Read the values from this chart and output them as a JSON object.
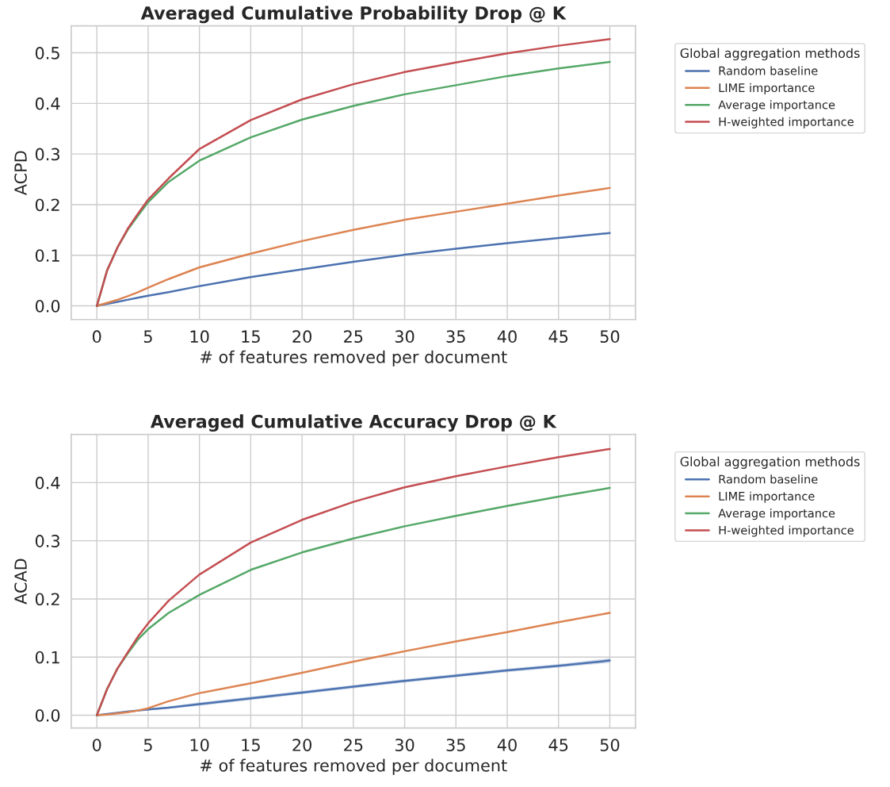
{
  "chart_data": [
    {
      "type": "line",
      "title": "Averaged Cumulative Probability Drop @ K",
      "xlabel": "# of features removed per document",
      "ylabel": "ACPD",
      "legend_title": "Global aggregation methods",
      "legend": "top right",
      "grid": true,
      "x": [
        0,
        1,
        2,
        3,
        4,
        5,
        7,
        10,
        15,
        20,
        25,
        30,
        35,
        40,
        45,
        50
      ],
      "xlim": [
        -2.5,
        52.5
      ],
      "xticks": [
        0,
        5,
        10,
        15,
        20,
        25,
        30,
        35,
        40,
        45,
        50
      ],
      "ylim": [
        -0.027,
        0.553
      ],
      "yticks": [
        {
          "value": 0,
          "label": "0.0"
        },
        0.1,
        0.2,
        0.3,
        0.4,
        0.5
      ],
      "series": [
        {
          "name": "Random baseline",
          "color": "#4c72b0",
          "values": [
            0,
            0.004,
            0.008,
            0.012,
            0.016,
            0.02,
            0.027,
            0.039,
            0.057,
            0.072,
            0.087,
            0.101,
            0.113,
            0.124,
            0.134,
            0.144
          ]
        },
        {
          "name": "LIME importance",
          "color": "#dd8452",
          "values": [
            0,
            0.006,
            0.012,
            0.019,
            0.027,
            0.036,
            0.053,
            0.076,
            0.103,
            0.128,
            0.15,
            0.17,
            0.186,
            0.202,
            0.218,
            0.233
          ]
        },
        {
          "name": "Average importance",
          "color": "#55a868",
          "values": [
            0,
            0.07,
            0.115,
            0.15,
            0.178,
            0.205,
            0.245,
            0.287,
            0.333,
            0.368,
            0.395,
            0.418,
            0.436,
            0.454,
            0.469,
            0.482
          ]
        },
        {
          "name": "H-weighted importance",
          "color": "#c44e52",
          "values": [
            0,
            0.07,
            0.115,
            0.152,
            0.182,
            0.21,
            0.252,
            0.31,
            0.367,
            0.408,
            0.438,
            0.462,
            0.481,
            0.499,
            0.514,
            0.527
          ]
        }
      ]
    },
    {
      "type": "line",
      "title": "Averaged Cumulative Accuracy Drop @ K",
      "xlabel": "# of features removed per document",
      "ylabel": "ACAD",
      "legend_title": "Global aggregation methods",
      "legend": "top right",
      "grid": true,
      "x": [
        0,
        1,
        2,
        3,
        4,
        5,
        7,
        10,
        15,
        20,
        25,
        30,
        35,
        40,
        45,
        50
      ],
      "xlim": [
        -2.5,
        52.5
      ],
      "xticks": [
        0,
        5,
        10,
        15,
        20,
        25,
        30,
        35,
        40,
        45,
        50
      ],
      "ylim": [
        -0.022,
        0.483
      ],
      "yticks": [
        {
          "value": 0,
          "label": "0.0"
        },
        0.1,
        0.2,
        0.3,
        0.4
      ],
      "series": [
        {
          "name": "Random baseline",
          "color": "#4c72b0",
          "values": [
            0,
            0.002,
            0.004,
            0.006,
            0.008,
            0.01,
            0.013,
            0.019,
            0.029,
            0.039,
            0.049,
            0.059,
            0.068,
            0.077,
            0.085,
            0.094
          ],
          "lower": [
            0,
            0.001,
            0.003,
            0.004,
            0.006,
            0.008,
            0.011,
            0.016,
            0.026,
            0.036,
            0.046,
            0.056,
            0.065,
            0.074,
            0.082,
            0.09
          ],
          "upper": [
            0,
            0.003,
            0.005,
            0.008,
            0.01,
            0.012,
            0.015,
            0.022,
            0.032,
            0.042,
            0.052,
            0.062,
            0.071,
            0.08,
            0.088,
            0.098
          ]
        },
        {
          "name": "LIME importance",
          "color": "#dd8452",
          "values": [
            0,
            0.001,
            0.003,
            0.005,
            0.008,
            0.012,
            0.024,
            0.038,
            0.055,
            0.073,
            0.092,
            0.11,
            0.127,
            0.143,
            0.16,
            0.176
          ]
        },
        {
          "name": "Average importance",
          "color": "#55a868",
          "values": [
            0,
            0.045,
            0.08,
            0.106,
            0.13,
            0.148,
            0.176,
            0.207,
            0.25,
            0.28,
            0.304,
            0.325,
            0.343,
            0.36,
            0.376,
            0.391
          ]
        },
        {
          "name": "H-weighted importance",
          "color": "#c44e52",
          "values": [
            0,
            0.045,
            0.08,
            0.108,
            0.135,
            0.158,
            0.197,
            0.242,
            0.297,
            0.336,
            0.367,
            0.392,
            0.411,
            0.428,
            0.444,
            0.458
          ]
        }
      ]
    }
  ]
}
